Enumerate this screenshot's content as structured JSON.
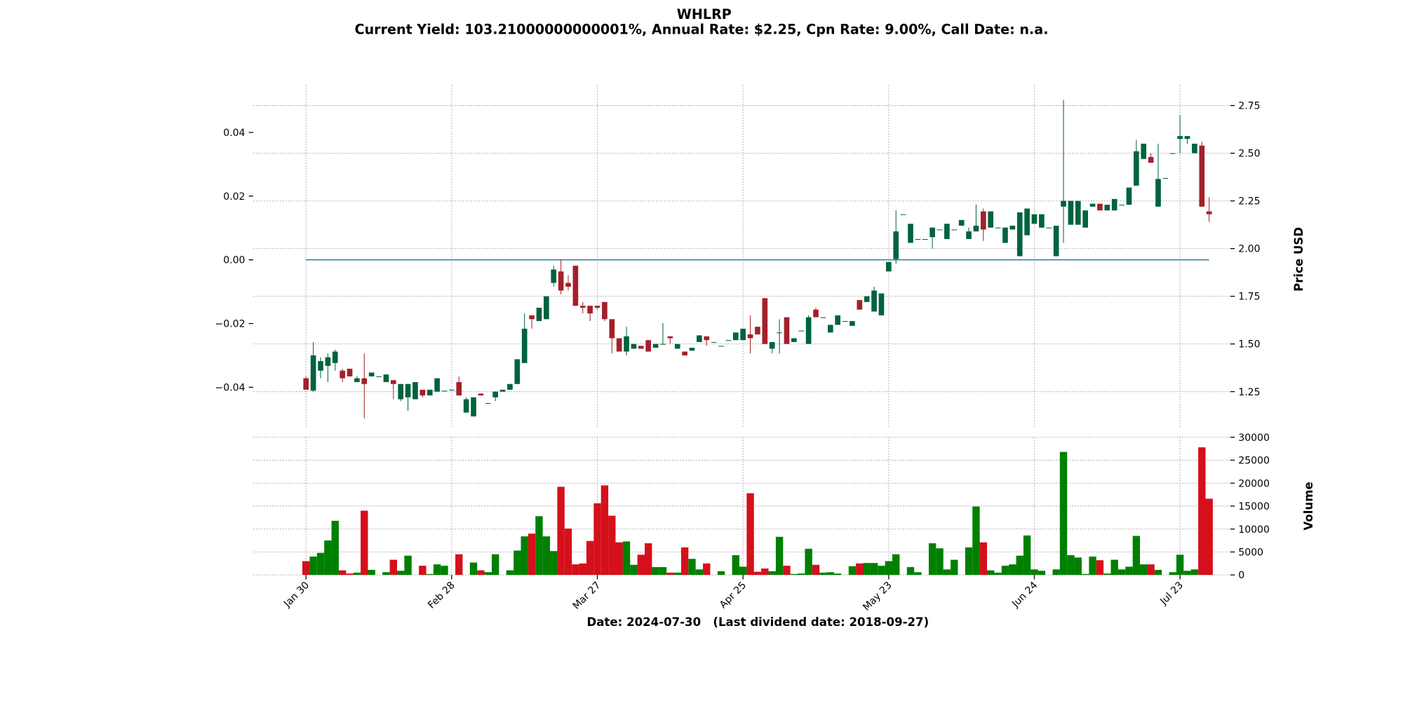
{
  "chart_data": {
    "type": "candlestick",
    "title": "WHLRP",
    "subtitle": "Current Yield: 103.21000000000001%, Annual Rate: $2.25, Cpn Rate: 9.00%, Call Date: n.a.",
    "xlabel": "Date: 2024-07-30   (Last dividend date: 2018-09-27)",
    "ylabel": "Price USD",
    "volume_label": "Volume",
    "grid": true,
    "up_color": "#00633e",
    "down_color": "#a3202a",
    "volume_up_color": "#008000",
    "volume_down_color": "#d5101b",
    "hline_color": "#2a7a9b",
    "categories": [
      "Jan 30",
      null,
      null,
      null,
      null,
      null,
      null,
      null,
      null,
      null,
      null,
      null,
      null,
      null,
      null,
      null,
      null,
      null,
      null,
      null,
      "Feb 28",
      null,
      null,
      null,
      null,
      null,
      null,
      null,
      null,
      null,
      null,
      null,
      null,
      null,
      null,
      null,
      null,
      null,
      null,
      null,
      "Mar 27",
      null,
      null,
      null,
      null,
      null,
      null,
      null,
      null,
      null,
      null,
      null,
      null,
      null,
      null,
      null,
      null,
      null,
      null,
      null,
      "Apr 25",
      null,
      null,
      null,
      null,
      null,
      null,
      null,
      null,
      null,
      null,
      null,
      null,
      null,
      null,
      null,
      null,
      null,
      null,
      null,
      "May 23",
      null,
      null,
      null,
      null,
      null,
      null,
      null,
      null,
      null,
      null,
      null,
      null,
      null,
      null,
      null,
      null,
      null,
      null,
      null,
      "Jun 24",
      null,
      null,
      null,
      null,
      null,
      null,
      null,
      null,
      null,
      null,
      null,
      null,
      null,
      null,
      null,
      null,
      null,
      null,
      null,
      "Jul 23",
      null,
      null,
      null,
      null
    ],
    "open": [
      1.32,
      1.255,
      1.36,
      1.385,
      1.4,
      1.36,
      1.37,
      1.3,
      1.32,
      1.33,
      1.33,
      1.3,
      1.31,
      1.21,
      1.22,
      1.21,
      1.26,
      1.23,
      1.25,
      1.255,
      1.26,
      1.3,
      1.14,
      1.12,
      1.24,
      1.19,
      1.22,
      1.25,
      1.26,
      1.29,
      1.4,
      1.65,
      1.62,
      1.63,
      1.82,
      1.88,
      1.82,
      1.91,
      1.7,
      1.7,
      1.7,
      1.72,
      1.63,
      1.53,
      1.46,
      1.475,
      1.49,
      1.52,
      1.48,
      1.5,
      1.54,
      1.475,
      1.46,
      1.465,
      1.51,
      1.54,
      1.51,
      1.49,
      1.52,
      1.52,
      1.52,
      1.55,
      1.59,
      1.74,
      1.475,
      1.56,
      1.64,
      1.51,
      1.57,
      1.5,
      1.68,
      1.64,
      1.56,
      1.6,
      1.62,
      1.595,
      1.73,
      1.72,
      1.67,
      1.65,
      1.88,
      1.945,
      2.18,
      2.03,
      2.05,
      2.05,
      2.06,
      2.1,
      2.05,
      2.1,
      2.12,
      2.05,
      2.09,
      2.195,
      2.11,
      2.11,
      2.03,
      2.1,
      1.96,
      2.07,
      2.13,
      2.11,
      2.11,
      1.96,
      2.22,
      2.125,
      2.125,
      2.11,
      2.22,
      2.235,
      2.2,
      2.2,
      2.23,
      2.23,
      2.33,
      2.47,
      2.48,
      2.22,
      2.37,
      2.5,
      2.575,
      2.575,
      2.5,
      2.54,
      2.195
    ],
    "high": [
      1.33,
      1.51,
      1.43,
      1.45,
      1.47,
      1.37,
      1.37,
      1.33,
      1.45,
      1.35,
      1.33,
      1.34,
      1.31,
      1.29,
      1.29,
      1.3,
      1.26,
      1.26,
      1.32,
      1.255,
      1.26,
      1.33,
      1.22,
      1.22,
      1.24,
      1.19,
      1.25,
      1.26,
      1.29,
      1.42,
      1.66,
      1.65,
      1.69,
      1.75,
      1.91,
      1.94,
      1.86,
      1.91,
      1.72,
      1.7,
      1.7,
      1.72,
      1.63,
      1.53,
      1.59,
      1.5,
      1.49,
      1.52,
      1.5,
      1.61,
      1.54,
      1.5,
      1.46,
      1.48,
      1.545,
      1.54,
      1.51,
      1.49,
      1.52,
      1.56,
      1.58,
      1.65,
      1.59,
      1.74,
      1.51,
      1.63,
      1.64,
      1.53,
      1.57,
      1.65,
      1.69,
      1.64,
      1.6,
      1.65,
      1.62,
      1.62,
      1.73,
      1.75,
      1.8,
      1.765,
      1.93,
      2.2,
      2.18,
      2.13,
      2.05,
      2.05,
      2.11,
      2.1,
      2.13,
      2.1,
      2.15,
      2.11,
      2.23,
      2.21,
      2.195,
      2.11,
      2.11,
      2.12,
      2.19,
      2.21,
      2.18,
      2.18,
      2.11,
      2.12,
      2.78,
      2.25,
      2.25,
      2.2,
      2.235,
      2.235,
      2.23,
      2.26,
      2.23,
      2.32,
      2.57,
      2.55,
      2.5,
      2.55,
      2.37,
      2.5,
      2.7,
      2.59,
      2.55,
      2.56,
      2.27
    ],
    "low": [
      1.26,
      1.25,
      1.32,
      1.3,
      1.36,
      1.3,
      1.33,
      1.3,
      1.11,
      1.33,
      1.33,
      1.3,
      1.21,
      1.2,
      1.15,
      1.21,
      1.22,
      1.23,
      1.25,
      1.255,
      1.26,
      1.23,
      1.14,
      1.12,
      1.23,
      1.19,
      1.2,
      1.25,
      1.26,
      1.29,
      1.4,
      1.58,
      1.62,
      1.63,
      1.8,
      1.76,
      1.78,
      1.7,
      1.66,
      1.62,
      1.68,
      1.62,
      1.45,
      1.46,
      1.44,
      1.475,
      1.475,
      1.46,
      1.48,
      1.5,
      1.5,
      1.475,
      1.44,
      1.465,
      1.51,
      1.49,
      1.51,
      1.49,
      1.52,
      1.52,
      1.52,
      1.45,
      1.55,
      1.5,
      1.45,
      1.45,
      1.5,
      1.51,
      1.57,
      1.5,
      1.64,
      1.64,
      1.56,
      1.6,
      1.62,
      1.595,
      1.68,
      1.72,
      1.67,
      1.65,
      1.88,
      1.92,
      2.18,
      2.03,
      2.05,
      2.05,
      2.0,
      2.1,
      2.05,
      2.1,
      2.12,
      2.05,
      2.09,
      2.04,
      2.11,
      2.11,
      2.03,
      2.1,
      1.96,
      2.07,
      2.13,
      2.11,
      2.11,
      1.96,
      2.03,
      2.125,
      2.125,
      2.11,
      2.22,
      2.2,
      2.2,
      2.2,
      2.23,
      2.23,
      2.33,
      2.47,
      2.45,
      2.22,
      2.37,
      2.5,
      2.5,
      2.55,
      2.5,
      2.22,
      2.14
    ],
    "close": [
      1.26,
      1.44,
      1.41,
      1.43,
      1.46,
      1.32,
      1.33,
      1.32,
      1.29,
      1.35,
      1.33,
      1.34,
      1.29,
      1.29,
      1.29,
      1.3,
      1.23,
      1.26,
      1.32,
      1.255,
      1.26,
      1.23,
      1.21,
      1.22,
      1.23,
      1.19,
      1.25,
      1.26,
      1.29,
      1.42,
      1.58,
      1.63,
      1.69,
      1.75,
      1.89,
      1.78,
      1.8,
      1.7,
      1.69,
      1.66,
      1.69,
      1.63,
      1.53,
      1.46,
      1.54,
      1.5,
      1.475,
      1.46,
      1.5,
      1.5,
      1.53,
      1.5,
      1.44,
      1.48,
      1.545,
      1.52,
      1.51,
      1.49,
      1.52,
      1.56,
      1.58,
      1.53,
      1.55,
      1.5,
      1.51,
      1.56,
      1.5,
      1.53,
      1.57,
      1.64,
      1.64,
      1.64,
      1.6,
      1.65,
      1.62,
      1.62,
      1.68,
      1.75,
      1.78,
      1.765,
      1.93,
      2.09,
      2.18,
      2.13,
      2.05,
      2.05,
      2.11,
      2.1,
      2.13,
      2.1,
      2.15,
      2.09,
      2.12,
      2.1,
      2.195,
      2.11,
      2.11,
      2.12,
      2.19,
      2.21,
      2.18,
      2.18,
      2.11,
      2.12,
      2.25,
      2.25,
      2.25,
      2.2,
      2.235,
      2.2,
      2.23,
      2.26,
      2.23,
      2.32,
      2.51,
      2.55,
      2.45,
      2.365,
      2.37,
      2.5,
      2.59,
      2.59,
      2.55,
      2.22,
      2.18
    ],
    "volume": [
      3000,
      4000,
      4800,
      7500,
      11800,
      1000,
      300,
      500,
      14000,
      1100,
      0,
      600,
      3300,
      900,
      4200,
      0,
      2000,
      200,
      2300,
      2000,
      0,
      4500,
      0,
      2700,
      1000,
      600,
      4500,
      0,
      1000,
      5300,
      8400,
      9000,
      12800,
      8400,
      5200,
      19200,
      10100,
      2300,
      2500,
      7400,
      15600,
      19500,
      12900,
      7100,
      7300,
      2200,
      4400,
      6900,
      1700,
      1700,
      500,
      500,
      6000,
      3500,
      1200,
      2500,
      0,
      800,
      0,
      4300,
      1800,
      17800,
      700,
      1400,
      800,
      8300,
      2000,
      200,
      300,
      5700,
      2200,
      500,
      600,
      300,
      0,
      1900,
      2500,
      2600,
      2600,
      2000,
      3000,
      4500,
      0,
      1700,
      600,
      0,
      6900,
      5800,
      1200,
      3300,
      0,
      6000,
      14900,
      7100,
      1000,
      500,
      2000,
      2300,
      4200,
      8600,
      1200,
      900,
      0,
      1200,
      26800,
      4300,
      3800,
      200,
      4000,
      3200,
      300,
      3300,
      1200,
      1800,
      8500,
      2300,
      2300,
      1100,
      0,
      600,
      4400,
      900,
      1200,
      27800,
      16600
    ],
    "ylim": [
      1.0625,
      2.858
    ],
    "yticks": [
      {
        "value": 1.25,
        "label": "1.25"
      },
      {
        "value": 1.5,
        "label": "1.50"
      },
      {
        "value": 1.75,
        "label": "1.75"
      },
      {
        "value": 2,
        "label": "2.00"
      },
      {
        "value": 2.25,
        "label": "2.25"
      },
      {
        "value": 2.5,
        "label": "2.50"
      },
      {
        "value": 2.75,
        "label": "2.75"
      }
    ],
    "left_ylim": [
      -0.0526,
      0.0549
    ],
    "left_yticks": [
      {
        "value": -0.04,
        "label": "−0.04"
      },
      {
        "value": -0.02,
        "label": "−0.02"
      },
      {
        "value": 0,
        "label": "0.00"
      },
      0.02,
      0.04
    ],
    "hline": 0,
    "volume_ylim": [
      0,
      30000
    ],
    "volume_yticks": [
      0,
      5000,
      10000,
      15000,
      20000,
      25000,
      30000
    ]
  }
}
